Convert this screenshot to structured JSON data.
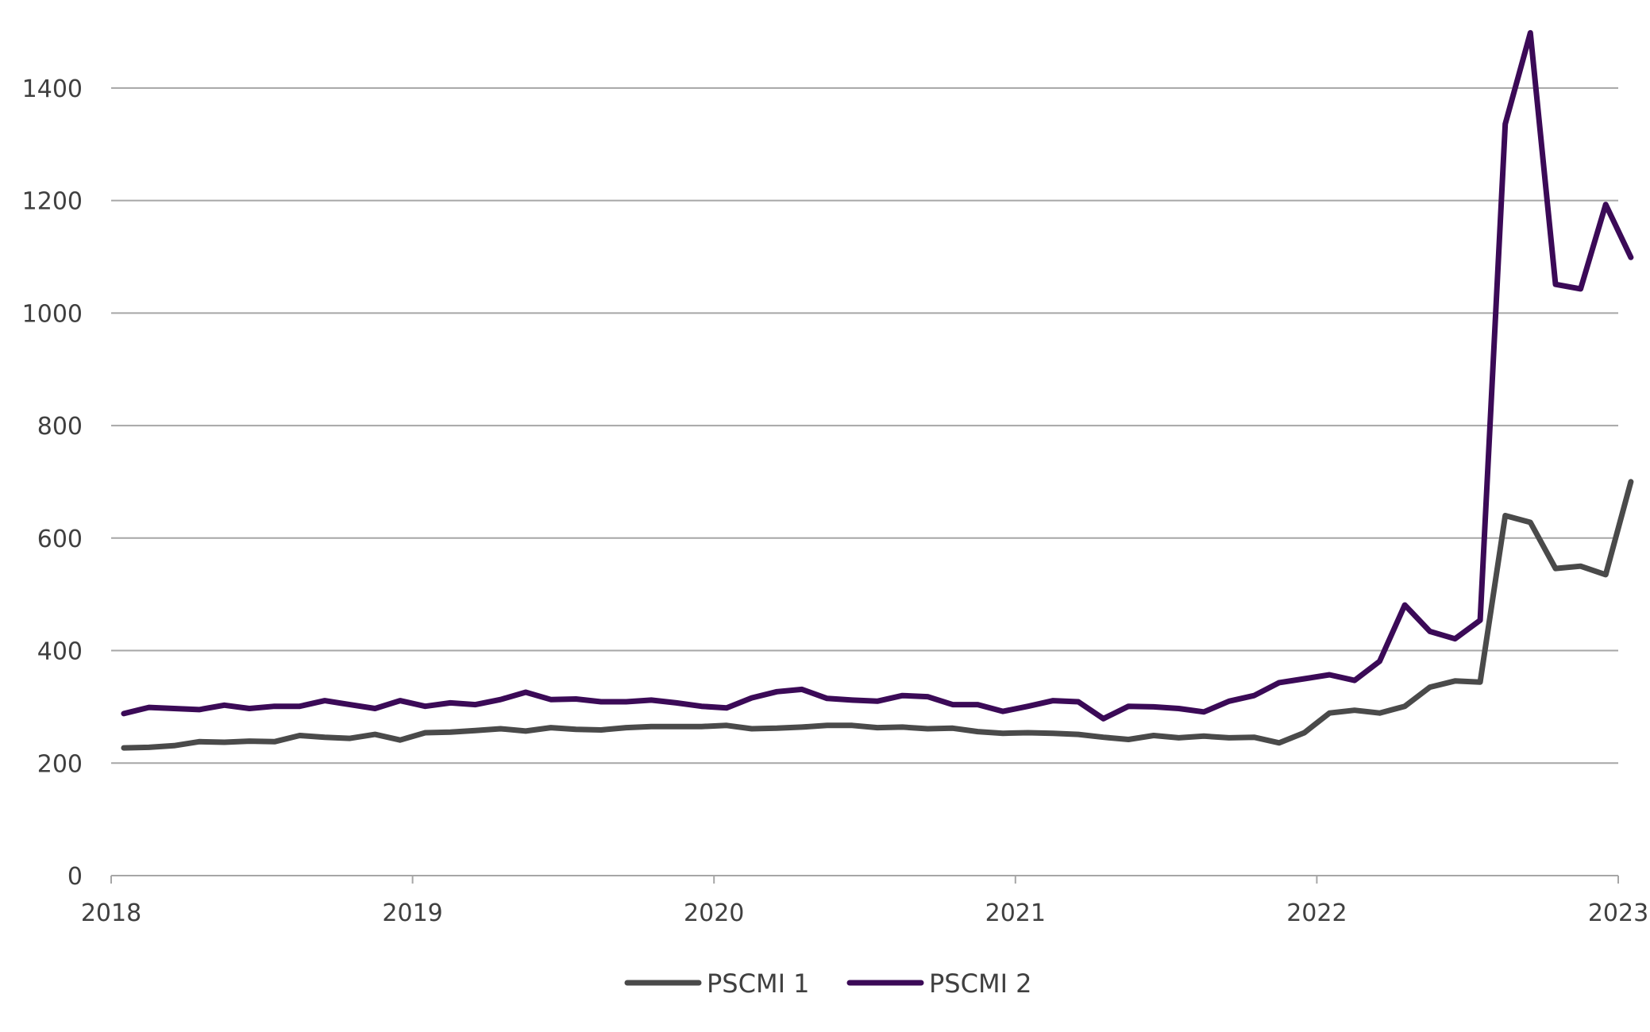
{
  "chart_data": {
    "type": "line",
    "title": "",
    "xlabel": "",
    "ylabel": "",
    "xlim": [
      2018,
      2023
    ],
    "ylim": [
      0,
      1500
    ],
    "grid": "horizontal",
    "legend_position": "bottom-center",
    "y_ticks": [
      0,
      200,
      400,
      600,
      800,
      1000,
      1200,
      1400
    ],
    "x_ticks": [
      "2018",
      "2019",
      "2020",
      "2021",
      "2022",
      "2023"
    ],
    "x_tick_values": [
      2018,
      2019,
      2020,
      2021,
      2022,
      2023
    ],
    "x_start": 2018.042,
    "x_step": 0.08333,
    "series": [
      {
        "name": "PSCMI 1",
        "color": "#4a4a4a",
        "values": [
          227,
          228,
          231,
          238,
          237,
          239,
          238,
          249,
          246,
          244,
          251,
          241,
          254,
          255,
          258,
          261,
          257,
          263,
          260,
          259,
          263,
          265,
          265,
          265,
          267,
          261,
          262,
          264,
          267,
          267,
          263,
          264,
          261,
          262,
          256,
          253,
          254,
          253,
          251,
          246,
          242,
          249,
          245,
          248,
          245,
          246,
          236,
          254,
          289,
          294,
          289,
          301,
          335,
          346,
          344,
          640,
          628,
          546,
          550,
          535,
          700
        ]
      },
      {
        "name": "PSCMI 2",
        "color": "#3b0a57",
        "values": [
          288,
          299,
          297,
          295,
          303,
          297,
          301,
          301,
          311,
          304,
          297,
          311,
          301,
          307,
          304,
          313,
          326,
          313,
          314,
          309,
          309,
          312,
          307,
          301,
          298,
          316,
          327,
          331,
          315,
          312,
          310,
          320,
          318,
          304,
          304,
          292,
          301,
          311,
          309,
          279,
          301,
          300,
          297,
          291,
          310,
          320,
          343,
          350,
          357,
          347,
          381,
          481,
          434,
          421,
          454,
          1336,
          1498,
          1051,
          1043,
          1193,
          1099
        ]
      }
    ]
  }
}
